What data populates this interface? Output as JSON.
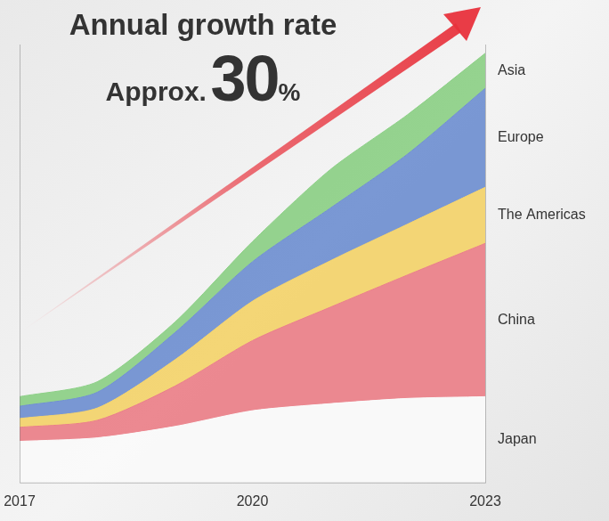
{
  "chart_data": {
    "type": "area",
    "title": "Annual growth rate",
    "annotation": [
      "Approx.",
      "30",
      "%"
    ],
    "categories": [
      "2017",
      null,
      null,
      "2020",
      null,
      null,
      "2023"
    ],
    "series": [
      {
        "name": "Japan",
        "color": "#fafafa",
        "values": [
          9.4,
          10.2,
          12.8,
          16.4,
          18,
          19.2,
          19.6
        ]
      },
      {
        "name": "China",
        "color": "#ea7f88",
        "values": [
          3.2,
          4,
          9.2,
          16,
          22,
          28.2,
          35
        ]
      },
      {
        "name": "The Americas",
        "color": "#f3d26a",
        "values": [
          2,
          2.8,
          6,
          9,
          10.6,
          11.6,
          12.8
        ]
      },
      {
        "name": "Europe",
        "color": "#6f8fd0",
        "values": [
          2.8,
          3.6,
          6.2,
          9,
          12,
          16,
          22.6
        ]
      },
      {
        "name": "Asia",
        "color": "#8ccf86",
        "values": [
          2.2,
          2.4,
          2.4,
          4.6,
          8.8,
          9,
          8
        ]
      }
    ],
    "ylim": [
      0,
      100
    ],
    "stacked": true,
    "grid": false,
    "legend": "right",
    "tick_labels": "x"
  }
}
